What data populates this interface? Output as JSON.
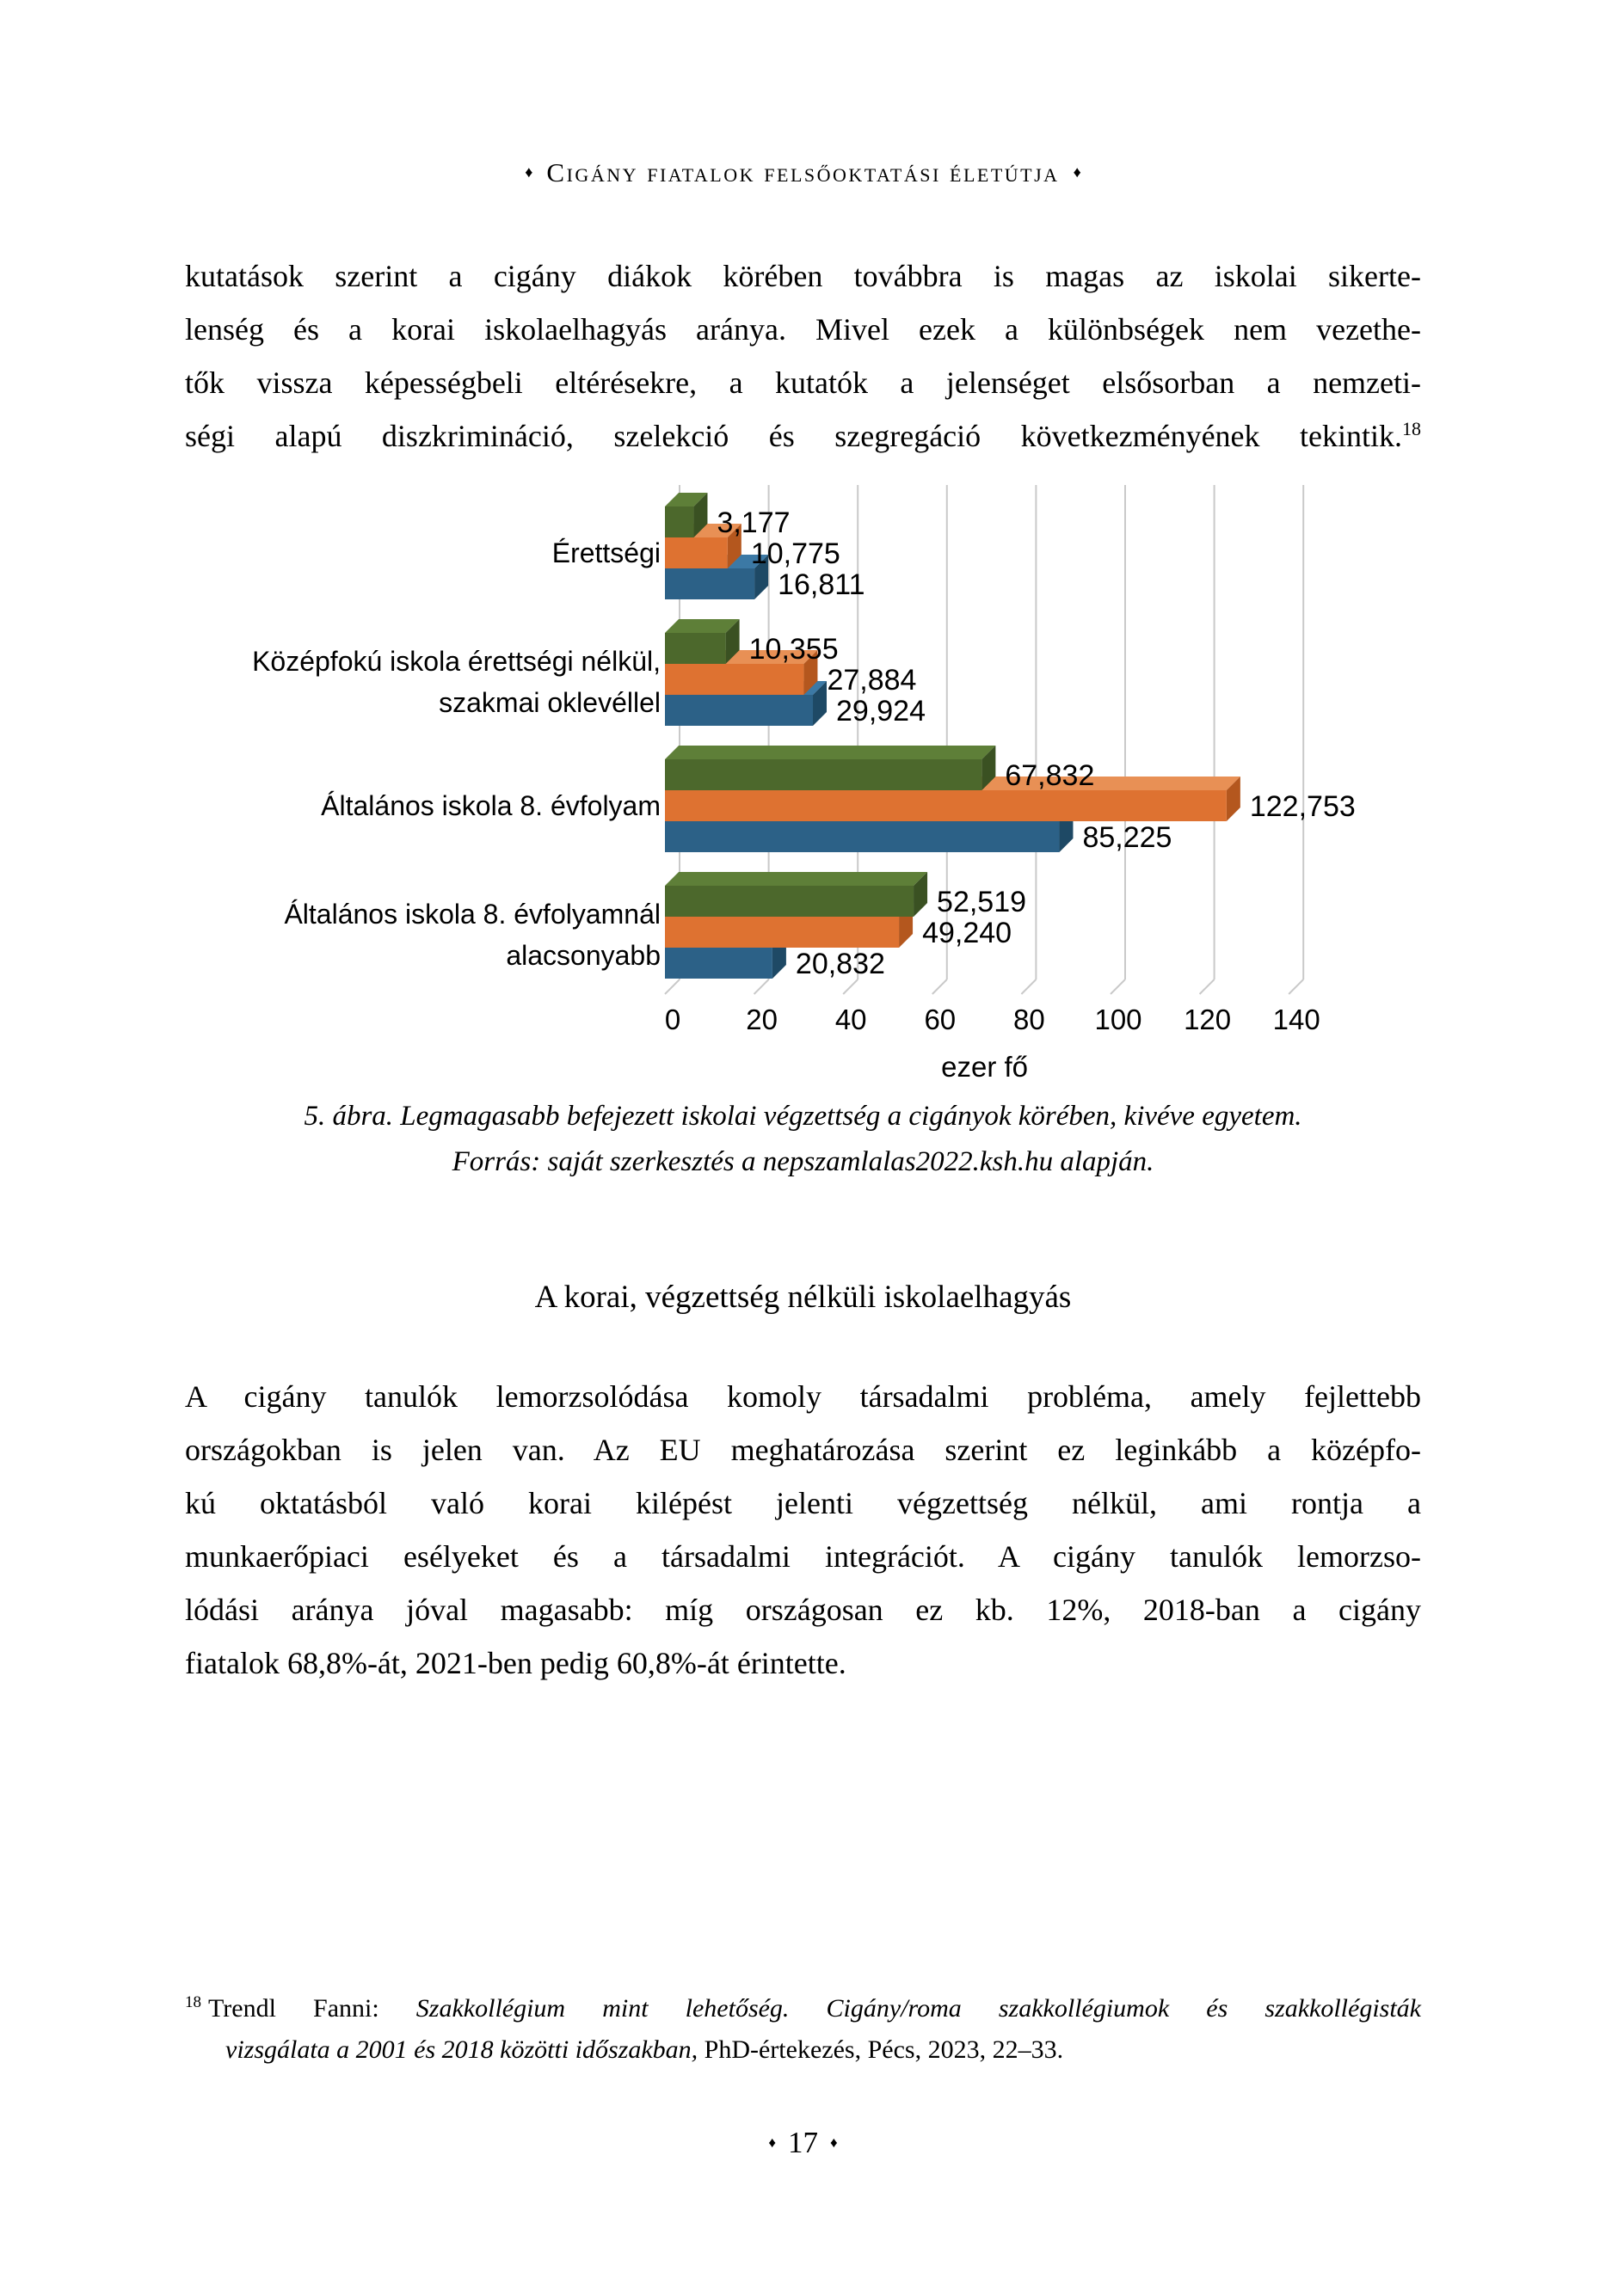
{
  "page": {
    "header": "Cigány fiatalok felsőoktatási életútja",
    "bullet": "♦",
    "page_number": "17"
  },
  "body": {
    "para1": {
      "lines": [
        "kutatások szerint a cigány diákok körében továbbra is magas az iskolai sikerte-",
        "lenség és a korai iskolaelhagyás aránya. Mivel ezek a különbségek nem vezethe-",
        "tők vissza képességbeli eltérésekre, a kutatók a jelenséget elsősorban a nemzeti-",
        "ségi alapú diszkrimináció, szelekció és szegregáció következményének tekintik."
      ],
      "footnote_ref": "18"
    },
    "section_heading": "A korai, végzettség nélküli iskolaelhagyás",
    "para2": {
      "lines": [
        "A cigány tanulók lemorzsolódása komoly társadalmi probléma, amely fejlettebb",
        "országokban is jelen van. Az EU meghatározása szerint ez leginkább a középfo-",
        "kú oktatásból való korai kilépést jelenti végzettség nélkül, ami rontja a",
        "munkaerőpiaci esélyeket és a társadalmi integrációt. A cigány tanulók lemorzso-",
        "lódási aránya jóval magasabb: míg országosan ez kb. 12%, 2018-ban a cigány",
        "fiatalok 68,8%-át, 2021-ben pedig 60,8%-át érintette."
      ]
    }
  },
  "figure": {
    "caption_line1": "5. ábra. Legmagasabb befejezett iskolai végzettség a cigányok körében, kivéve egyetem.",
    "caption_line2": "Forrás: saját szerkesztés a nepszamlalas2022.ksh.hu alapján."
  },
  "footnote": {
    "ref": "18",
    "line1_roman": "Trendl Fanni: ",
    "line1_italic": "Szakkollégium mint lehetőség. Cigány/roma szakkollégiumok és szakkollégisták",
    "line2_italic": "vizsgálata a 2001 és 2018 közötti időszakban,",
    "line2_roman": " PhD-értekezés, Pécs, 2023, 22–33."
  },
  "chart_data": {
    "type": "bar",
    "orientation": "horizontal",
    "style": "3d",
    "title": "",
    "xlabel": "ezer fő",
    "ylabel": "",
    "xlim": [
      0,
      140
    ],
    "x_ticks": [
      0,
      20,
      40,
      60,
      80,
      100,
      120,
      140
    ],
    "grid": true,
    "legend_position": "none",
    "grid_color": "#c9c9c9",
    "categories": [
      "Érettségi",
      "Középfokú iskola érettségi nélkül,\nszakmai oklevéllel",
      "Általános iskola 8. évfolyam",
      "Általános iskola 8. évfolyamnál\nalacsonyabb"
    ],
    "series": [
      {
        "name": "series-green",
        "color": "#4C682C",
        "color_top": "#5E7F38",
        "color_side": "#3A5122",
        "values": [
          3.177,
          10.355,
          67.832,
          52.519
        ]
      },
      {
        "name": "series-orange",
        "color": "#DE7231",
        "color_top": "#E89055",
        "color_side": "#B4571E",
        "values": [
          10.775,
          27.884,
          122.753,
          49.24
        ]
      },
      {
        "name": "series-blue",
        "color": "#2C6187",
        "color_top": "#3C79A5",
        "color_side": "#1E4965",
        "values": [
          16.811,
          29.924,
          85.225,
          20.832
        ]
      }
    ],
    "data_labels": [
      [
        "3,177",
        "10,775",
        "16,811"
      ],
      [
        "10,355",
        "27,884",
        "29,924"
      ],
      [
        "67,832",
        "122,753",
        "85,225"
      ],
      [
        "52,519",
        "49,240",
        "20,832"
      ]
    ]
  }
}
